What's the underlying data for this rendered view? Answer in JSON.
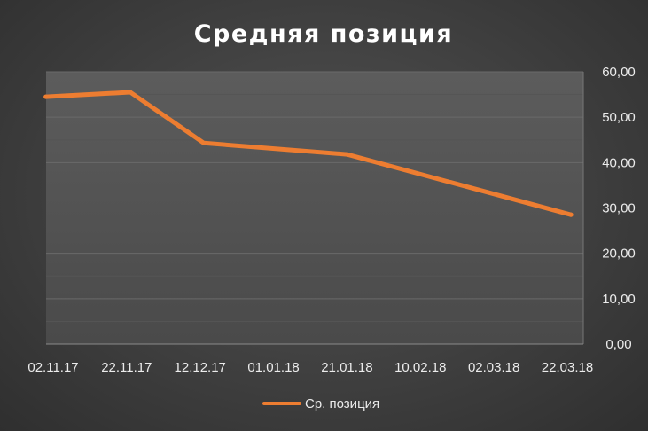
{
  "chart_data": {
    "type": "line",
    "title": "Средняя позиция",
    "x": [
      "02.11.17",
      "22.11.17",
      "12.12.17",
      "01.01.18",
      "21.01.18",
      "10.02.18",
      "02.03.18",
      "22.03.18"
    ],
    "y_ticks": [
      "0,00",
      "10,00",
      "20,00",
      "30,00",
      "40,00",
      "50,00",
      "60,00"
    ],
    "ylim": [
      0,
      60
    ],
    "y_axis_position": "right",
    "grid": true,
    "legend_position": "bottom",
    "series": [
      {
        "name": "Ср. позиция",
        "color": "#ed7d31",
        "points": [
          {
            "x": "31.10.17",
            "y": 54.5
          },
          {
            "x": "23.11.17",
            "y": 55.5
          },
          {
            "x": "13.12.17",
            "y": 44.3
          },
          {
            "x": "21.01.18",
            "y": 41.8
          },
          {
            "x": "23.03.18",
            "y": 28.5
          }
        ]
      }
    ]
  }
}
